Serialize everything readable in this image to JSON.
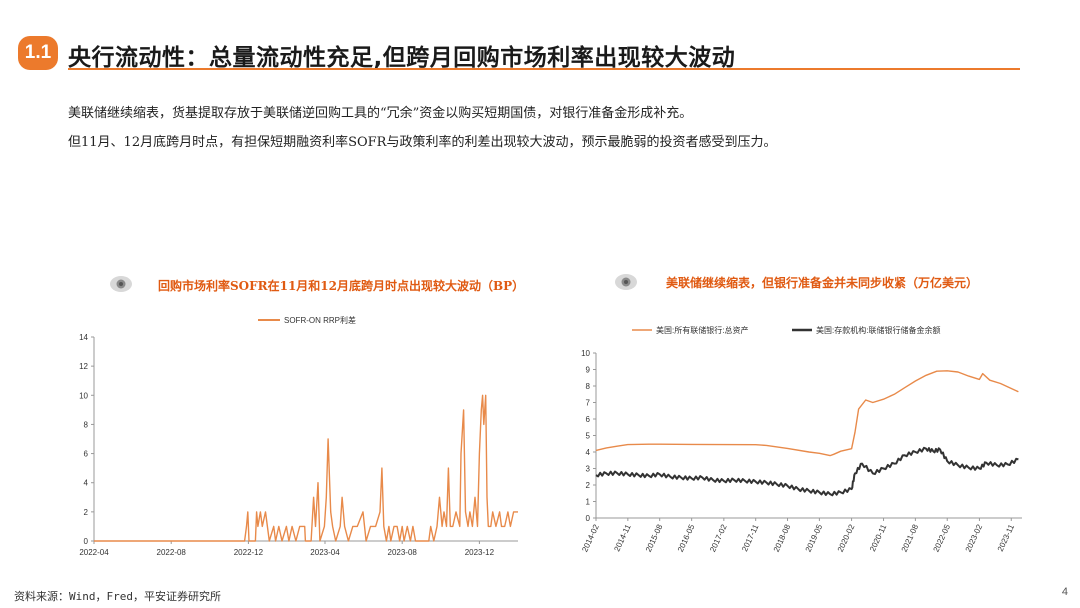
{
  "header": {
    "section_number": "1.1",
    "title": "央行流动性：总量流动性充足,但跨月回购市场利率出现较大波动"
  },
  "body": {
    "line1": "美联储继续缩表，货基提取存放于美联储逆回购工具的“冗余”资金以购买短期国债，对银行准备金形成补充。",
    "line2": "但11月、12月底跨月时点，有担保短期融资利率SOFR与政策利率的利差出现较大波动，预示最脆弱的投资者感受到压力。"
  },
  "footer": {
    "source": "资料来源：Wind，Fred，平安证券研究所",
    "page_number": "4"
  },
  "colors": {
    "accent": "#ec7a2c",
    "title_red": "#e05a12",
    "series_orange": "#e88a4a",
    "series_dark": "#333333"
  },
  "chart_data": [
    {
      "type": "line",
      "title": "回购市场利率SOFR在11月和12月底跨月时点出现较大波动（BP）",
      "legend": [
        "SOFR-ON RRP利差"
      ],
      "legend_position": "top-center",
      "ylim": [
        0,
        14
      ],
      "y_ticks": [
        "0",
        "2",
        "4",
        "6",
        "8",
        "10",
        "12",
        "14"
      ],
      "x_ticks": [
        "2022-04",
        "2022-08",
        "2022-12",
        "2023-04",
        "2023-08",
        "2023-12"
      ],
      "xlim": [
        "2022-04-01",
        "2024-01-31"
      ],
      "series": [
        {
          "name": "SOFR-ON RRP利差",
          "points": [
            [
              "2022-04-01",
              0
            ],
            [
              "2022-11-25",
              0
            ],
            [
              "2022-11-28",
              1
            ],
            [
              "2022-11-30",
              2
            ],
            [
              "2022-12-02",
              0
            ],
            [
              "2022-12-12",
              0
            ],
            [
              "2022-12-14",
              2
            ],
            [
              "2022-12-16",
              1
            ],
            [
              "2022-12-20",
              2
            ],
            [
              "2022-12-23",
              1
            ],
            [
              "2022-12-28",
              2
            ],
            [
              "2023-01-03",
              0
            ],
            [
              "2023-01-10",
              1
            ],
            [
              "2023-01-13",
              0
            ],
            [
              "2023-01-18",
              1
            ],
            [
              "2023-01-23",
              0
            ],
            [
              "2023-01-30",
              1
            ],
            [
              "2023-02-03",
              0
            ],
            [
              "2023-02-08",
              1
            ],
            [
              "2023-02-14",
              0
            ],
            [
              "2023-02-20",
              1
            ],
            [
              "2023-02-28",
              1
            ],
            [
              "2023-03-01",
              0
            ],
            [
              "2023-03-10",
              0
            ],
            [
              "2023-03-14",
              3
            ],
            [
              "2023-03-17",
              1
            ],
            [
              "2023-03-21",
              4
            ],
            [
              "2023-03-24",
              0
            ],
            [
              "2023-03-31",
              1
            ],
            [
              "2023-04-03",
              3
            ],
            [
              "2023-04-06",
              7
            ],
            [
              "2023-04-10",
              2
            ],
            [
              "2023-04-13",
              1
            ],
            [
              "2023-04-18",
              0
            ],
            [
              "2023-04-25",
              1
            ],
            [
              "2023-04-28",
              3
            ],
            [
              "2023-05-02",
              1
            ],
            [
              "2023-05-08",
              0
            ],
            [
              "2023-05-15",
              1
            ],
            [
              "2023-05-22",
              1
            ],
            [
              "2023-05-31",
              2
            ],
            [
              "2023-06-05",
              0
            ],
            [
              "2023-06-12",
              1
            ],
            [
              "2023-06-20",
              1
            ],
            [
              "2023-06-27",
              2
            ],
            [
              "2023-06-30",
              5
            ],
            [
              "2023-07-03",
              1
            ],
            [
              "2023-07-07",
              0
            ],
            [
              "2023-07-11",
              1
            ],
            [
              "2023-07-14",
              0
            ],
            [
              "2023-07-19",
              1
            ],
            [
              "2023-07-24",
              1
            ],
            [
              "2023-07-28",
              0
            ],
            [
              "2023-08-01",
              1
            ],
            [
              "2023-08-04",
              0
            ],
            [
              "2023-08-09",
              1
            ],
            [
              "2023-08-14",
              0
            ],
            [
              "2023-08-18",
              1
            ],
            [
              "2023-08-22",
              0
            ],
            [
              "2023-08-28",
              0
            ],
            [
              "2023-09-01",
              0
            ],
            [
              "2023-09-12",
              0
            ],
            [
              "2023-09-15",
              1
            ],
            [
              "2023-09-20",
              0
            ],
            [
              "2023-09-25",
              1
            ],
            [
              "2023-09-29",
              3
            ],
            [
              "2023-10-03",
              1
            ],
            [
              "2023-10-06",
              2
            ],
            [
              "2023-10-10",
              1
            ],
            [
              "2023-10-13",
              5
            ],
            [
              "2023-10-16",
              1
            ],
            [
              "2023-10-20",
              1
            ],
            [
              "2023-10-25",
              2
            ],
            [
              "2023-10-31",
              1
            ],
            [
              "2023-11-02",
              6
            ],
            [
              "2023-11-06",
              9
            ],
            [
              "2023-11-09",
              2
            ],
            [
              "2023-11-13",
              1
            ],
            [
              "2023-11-16",
              2
            ],
            [
              "2023-11-20",
              1
            ],
            [
              "2023-11-24",
              3
            ],
            [
              "2023-11-28",
              1
            ],
            [
              "2023-12-01",
              6
            ],
            [
              "2023-12-04",
              9
            ],
            [
              "2023-12-06",
              10
            ],
            [
              "2023-12-08",
              8
            ],
            [
              "2023-12-11",
              10
            ],
            [
              "2023-12-13",
              3
            ],
            [
              "2023-12-15",
              1
            ],
            [
              "2023-12-19",
              1
            ],
            [
              "2023-12-22",
              2
            ],
            [
              "2023-12-27",
              1
            ],
            [
              "2024-01-02",
              2
            ],
            [
              "2024-01-05",
              1
            ],
            [
              "2024-01-10",
              1
            ],
            [
              "2024-01-15",
              2
            ],
            [
              "2024-01-19",
              1
            ],
            [
              "2024-01-24",
              2
            ],
            [
              "2024-01-31",
              2
            ]
          ]
        }
      ]
    },
    {
      "type": "line",
      "title": "美联储继续缩表，但银行准备金并未同步收紧（万亿美元）",
      "legend": [
        "美国:所有联储银行:总资产",
        "美国:存款机构:联储银行储备金余额"
      ],
      "legend_position": "top-center",
      "ylim": [
        0,
        10
      ],
      "y_ticks": [
        "0",
        "1",
        "2",
        "3",
        "4",
        "5",
        "6",
        "7",
        "8",
        "9",
        "10"
      ],
      "x_ticks": [
        "2014-02",
        "2014-11",
        "2015-08",
        "2016-05",
        "2017-02",
        "2017-11",
        "2018-08",
        "2019-05",
        "2020-02",
        "2020-11",
        "2021-08",
        "2022-05",
        "2023-02",
        "2023-11"
      ],
      "xlim": [
        "2014-02-01",
        "2024-02-01"
      ],
      "series": [
        {
          "name": "美国:所有联储银行:总资产",
          "points": [
            [
              "2014-02",
              4.1
            ],
            [
              "2014-05",
              4.25
            ],
            [
              "2014-08",
              4.35
            ],
            [
              "2014-11",
              4.45
            ],
            [
              "2015-05",
              4.47
            ],
            [
              "2015-08",
              4.47
            ],
            [
              "2016-05",
              4.46
            ],
            [
              "2017-02",
              4.45
            ],
            [
              "2017-11",
              4.44
            ],
            [
              "2018-02",
              4.4
            ],
            [
              "2018-08",
              4.22
            ],
            [
              "2019-02",
              4.0
            ],
            [
              "2019-05",
              3.92
            ],
            [
              "2019-08",
              3.78
            ],
            [
              "2019-09",
              3.86
            ],
            [
              "2019-11",
              4.05
            ],
            [
              "2020-02",
              4.2
            ],
            [
              "2020-03",
              5.2
            ],
            [
              "2020-04",
              6.6
            ],
            [
              "2020-06",
              7.15
            ],
            [
              "2020-08",
              7.0
            ],
            [
              "2020-11",
              7.2
            ],
            [
              "2021-02",
              7.5
            ],
            [
              "2021-05",
              7.9
            ],
            [
              "2021-08",
              8.3
            ],
            [
              "2021-11",
              8.65
            ],
            [
              "2022-02",
              8.9
            ],
            [
              "2022-05",
              8.92
            ],
            [
              "2022-08",
              8.85
            ],
            [
              "2022-11",
              8.6
            ],
            [
              "2023-02",
              8.4
            ],
            [
              "2023-03",
              8.75
            ],
            [
              "2023-05",
              8.35
            ],
            [
              "2023-08",
              8.15
            ],
            [
              "2023-11",
              7.85
            ],
            [
              "2024-01",
              7.65
            ]
          ]
        },
        {
          "name": "美国:存款机构:联储银行储备金余额",
          "points": [
            [
              "2014-02",
              2.6
            ],
            [
              "2014-05",
              2.7
            ],
            [
              "2014-08",
              2.72
            ],
            [
              "2014-11",
              2.65
            ],
            [
              "2015-02",
              2.6
            ],
            [
              "2015-05",
              2.55
            ],
            [
              "2015-08",
              2.65
            ],
            [
              "2015-11",
              2.5
            ],
            [
              "2016-02",
              2.45
            ],
            [
              "2016-05",
              2.4
            ],
            [
              "2016-08",
              2.45
            ],
            [
              "2016-11",
              2.3
            ],
            [
              "2017-02",
              2.25
            ],
            [
              "2017-05",
              2.3
            ],
            [
              "2017-08",
              2.25
            ],
            [
              "2017-11",
              2.2
            ],
            [
              "2018-02",
              2.15
            ],
            [
              "2018-05",
              2.05
            ],
            [
              "2018-08",
              1.95
            ],
            [
              "2018-11",
              1.75
            ],
            [
              "2019-02",
              1.65
            ],
            [
              "2019-05",
              1.55
            ],
            [
              "2019-08",
              1.45
            ],
            [
              "2019-11",
              1.55
            ],
            [
              "2020-02",
              1.75
            ],
            [
              "2020-03",
              2.7
            ],
            [
              "2020-05",
              3.3
            ],
            [
              "2020-08",
              2.7
            ],
            [
              "2020-11",
              3.0
            ],
            [
              "2021-02",
              3.3
            ],
            [
              "2021-05",
              3.8
            ],
            [
              "2021-08",
              4.0
            ],
            [
              "2021-11",
              4.2
            ],
            [
              "2022-01",
              4.05
            ],
            [
              "2022-03",
              4.15
            ],
            [
              "2022-05",
              3.45
            ],
            [
              "2022-08",
              3.2
            ],
            [
              "2022-11",
              3.05
            ],
            [
              "2023-02",
              3.0
            ],
            [
              "2023-04",
              3.35
            ],
            [
              "2023-07",
              3.2
            ],
            [
              "2023-10",
              3.25
            ],
            [
              "2024-01",
              3.55
            ]
          ]
        }
      ]
    }
  ]
}
